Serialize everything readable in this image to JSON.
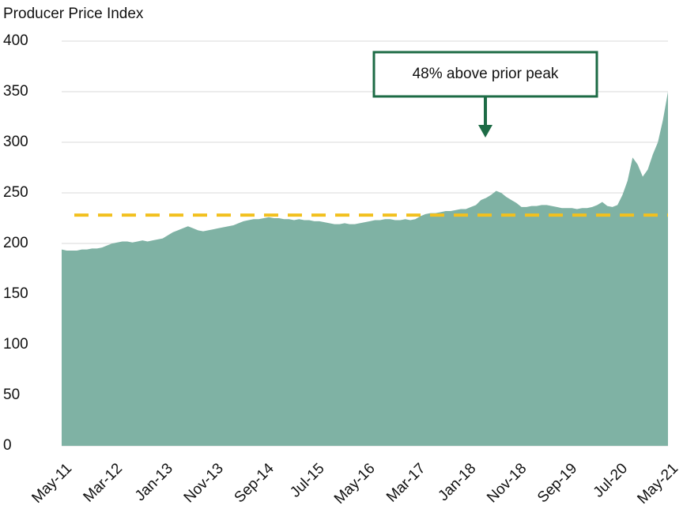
{
  "chart_data": {
    "type": "area",
    "title": "Producer Price Index",
    "categories": [
      "May-11",
      null,
      null,
      null,
      null,
      null,
      null,
      null,
      null,
      null,
      "Mar-12",
      null,
      null,
      null,
      null,
      null,
      null,
      null,
      null,
      null,
      "Jan-13",
      null,
      null,
      null,
      null,
      null,
      null,
      null,
      null,
      null,
      "Nov-13",
      null,
      null,
      null,
      null,
      null,
      null,
      null,
      null,
      null,
      "Sep-14",
      null,
      null,
      null,
      null,
      null,
      null,
      null,
      null,
      null,
      "Jul-15",
      null,
      null,
      null,
      null,
      null,
      null,
      null,
      null,
      null,
      "May-16",
      null,
      null,
      null,
      null,
      null,
      null,
      null,
      null,
      null,
      "Mar-17",
      null,
      null,
      null,
      null,
      null,
      null,
      null,
      null,
      null,
      "Jan-18",
      null,
      null,
      null,
      null,
      null,
      null,
      null,
      null,
      null,
      "Nov-18",
      null,
      null,
      null,
      null,
      null,
      null,
      null,
      null,
      null,
      "Sep-19",
      null,
      null,
      null,
      null,
      null,
      null,
      null,
      null,
      null,
      "Jul-20",
      null,
      null,
      null,
      null,
      null,
      null,
      null,
      null,
      null,
      "May-21"
    ],
    "values": [
      194,
      193,
      193,
      193,
      194,
      194,
      195,
      195,
      196,
      198,
      200,
      201,
      202,
      202,
      201,
      202,
      203,
      202,
      203,
      204,
      205,
      208,
      211,
      213,
      215,
      217,
      215,
      213,
      212,
      213,
      214,
      215,
      216,
      217,
      218,
      220,
      222,
      223,
      224,
      224,
      225,
      226,
      225,
      225,
      224,
      224,
      223,
      224,
      223,
      223,
      222,
      222,
      221,
      220,
      219,
      219,
      220,
      219,
      219,
      220,
      221,
      222,
      223,
      223,
      224,
      224,
      223,
      223,
      224,
      223,
      224,
      227,
      229,
      230,
      230,
      231,
      232,
      232,
      233,
      234,
      234,
      236,
      238,
      243,
      245,
      248,
      252,
      250,
      246,
      243,
      240,
      236,
      236,
      237,
      237,
      238,
      238,
      237,
      236,
      235,
      235,
      235,
      234,
      235,
      235,
      236,
      238,
      241,
      237,
      236,
      238,
      248,
      262,
      285,
      278,
      266,
      273,
      288,
      300,
      322,
      350
    ],
    "color": "#7fb2a4",
    "ylim": [
      0,
      400
    ],
    "yticks": [
      0,
      50,
      100,
      150,
      200,
      250,
      300,
      350,
      400
    ],
    "grid": true,
    "reference_line": {
      "value": 228,
      "color": "#f2c01e"
    },
    "annotation": {
      "text": "48% above prior peak",
      "color": "#1d6b45"
    }
  }
}
